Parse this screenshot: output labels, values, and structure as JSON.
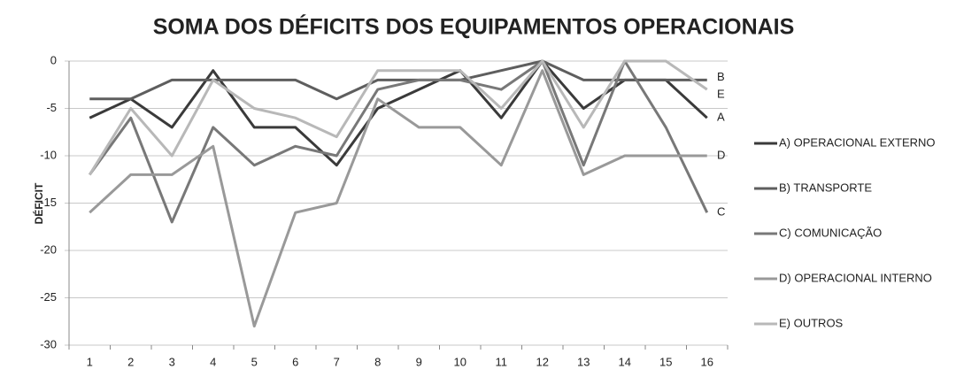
{
  "chart_data": {
    "type": "line",
    "title": "SOMA DOS DÉFICITS DOS EQUIPAMENTOS OPERACIONAIS",
    "y_label": "DÉFICIT",
    "categories": [
      "1",
      "2",
      "3",
      "4",
      "5",
      "6",
      "7",
      "8",
      "9",
      "10",
      "11",
      "12",
      "13",
      "14",
      "15",
      "16"
    ],
    "ylim": [
      -30,
      0
    ],
    "yticks": [
      0,
      -5,
      -10,
      -15,
      -20,
      -25,
      -30
    ],
    "grid": true,
    "legend": "right",
    "series": [
      {
        "name": "A) OPERACIONAL EXTERNO",
        "label": "A",
        "color": "#3a3a3a",
        "values": [
          -6,
          -4,
          -7,
          -1,
          -7,
          -7,
          -11,
          -5,
          -3,
          -1,
          -6,
          0,
          -5,
          -2,
          -2,
          -6
        ]
      },
      {
        "name": "B) TRANSPORTE",
        "label": "B",
        "color": "#5e5e5e",
        "values": [
          -4,
          -4,
          -2,
          -2,
          -2,
          -2,
          -4,
          -2,
          -2,
          -2,
          -1,
          0,
          -2,
          -2,
          -2,
          -2
        ]
      },
      {
        "name": "C) COMUNICAÇÃO",
        "label": "C",
        "color": "#787878",
        "values": [
          -12,
          -6,
          -17,
          -7,
          -11,
          -9,
          -10,
          -3,
          -2,
          -2,
          -3,
          0,
          -11,
          0,
          -7,
          -16
        ]
      },
      {
        "name": "D) OPERACIONAL INTERNO",
        "label": "D",
        "color": "#999999",
        "values": [
          -16,
          -12,
          -12,
          -9,
          -28,
          -16,
          -15,
          -4,
          -7,
          -7,
          -11,
          -1,
          -12,
          -10,
          -10,
          -10
        ]
      },
      {
        "name": "E) OUTROS",
        "label": "E",
        "color": "#b8b8b8",
        "values": [
          -12,
          -5,
          -10,
          -2,
          -5,
          -6,
          -8,
          -1,
          -1,
          -1,
          -5,
          0,
          -7,
          0,
          0,
          -3
        ]
      }
    ]
  }
}
